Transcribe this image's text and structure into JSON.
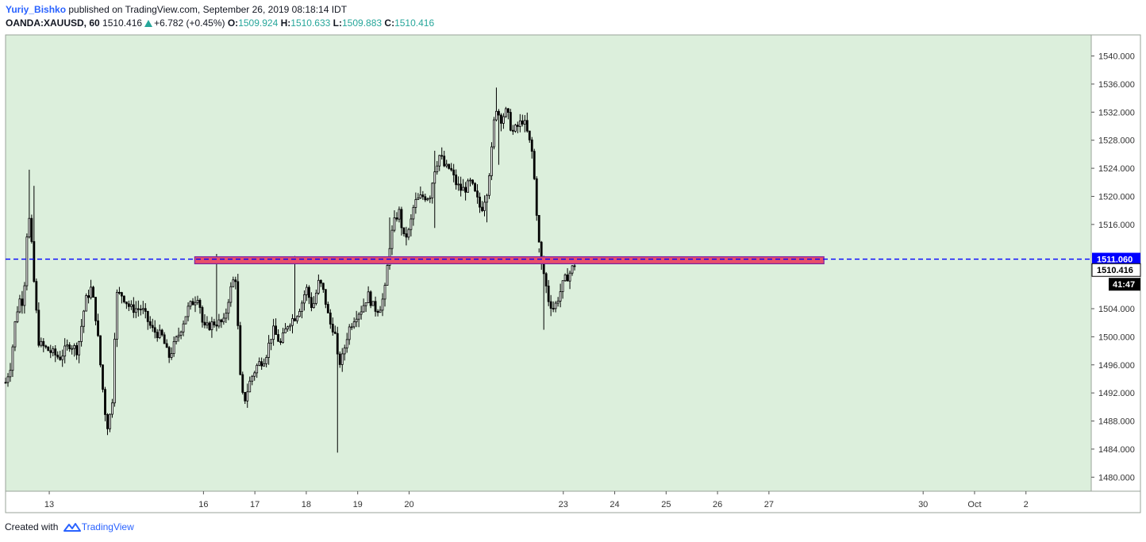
{
  "header": {
    "author": "Yuriy_Bishko",
    "published_text": "published on TradingView.com, September 26, 2019 08:18:14 IDT",
    "symbol": "OANDA:XAUUSD, 60",
    "last": "1510.416",
    "change": "+6.782 (+0.45%)",
    "o_label": "O:",
    "o_value": "1509.924",
    "h_label": "H:",
    "h_value": "1510.633",
    "l_label": "L:",
    "l_value": "1509.883",
    "c_label": "C:",
    "c_value": "1510.416"
  },
  "footer": {
    "created_text": "Created with",
    "brand": "TradingView"
  },
  "colors": {
    "background": "#dcefdc",
    "candle": "#000000",
    "dashed_line": "#0000ff",
    "zone_fill": "#e84f6a",
    "zone_border": "#7b1fa2",
    "header_up": "#26a69a"
  },
  "chart_data": {
    "type": "candlestick",
    "symbol": "OANDA:XAUUSD",
    "interval": "60",
    "ylim": [
      1478,
      1543
    ],
    "y_ticks": [
      "1540.000",
      "1536.000",
      "1532.000",
      "1528.000",
      "1524.000",
      "1520.000",
      "1516.000",
      "1504.000",
      "1500.000",
      "1496.000",
      "1492.000",
      "1488.000",
      "1484.000",
      "1480.000"
    ],
    "x_ticks": [
      {
        "label": "13",
        "t": 13
      },
      {
        "label": "16",
        "t": 16
      },
      {
        "label": "17",
        "t": 17
      },
      {
        "label": "18",
        "t": 18
      },
      {
        "label": "19",
        "t": 19
      },
      {
        "label": "20",
        "t": 20
      },
      {
        "label": "23",
        "t": 23
      },
      {
        "label": "24",
        "t": 24
      },
      {
        "label": "25",
        "t": 25
      },
      {
        "label": "26",
        "t": 26
      },
      {
        "label": "27",
        "t": 27
      },
      {
        "label": "30",
        "t": 30
      },
      {
        "label": "Oct",
        "t": 31
      },
      {
        "label": "2",
        "t": 32
      }
    ],
    "x_range": [
      12.15,
      33.27
    ],
    "horizontal_line": {
      "value": 1511.06,
      "label": "1511.060",
      "style": "dashed"
    },
    "zone": {
      "t_start": 15.83,
      "t_end": 28.07,
      "y_low": 1510.4,
      "y_high": 1511.4
    },
    "last_price": {
      "label": "1510.416",
      "value": 1510.416
    },
    "countdown": "41:47",
    "anchors": [
      [
        12.15,
        1493.5
      ],
      [
        12.25,
        1496
      ],
      [
        12.35,
        1503
      ],
      [
        12.45,
        1506
      ],
      [
        12.5,
        1504
      ],
      [
        12.55,
        1514
      ],
      [
        12.62,
        1517
      ],
      [
        12.72,
        1506
      ],
      [
        12.8,
        1499
      ],
      [
        13.0,
        1498
      ],
      [
        13.2,
        1497
      ],
      [
        13.4,
        1499
      ],
      [
        13.55,
        1498
      ],
      [
        13.7,
        1505
      ],
      [
        13.82,
        1507
      ],
      [
        13.92,
        1502
      ],
      [
        14.02,
        1494
      ],
      [
        14.12,
        1487
      ],
      [
        14.22,
        1490
      ],
      [
        14.3,
        1506
      ],
      [
        14.42,
        1506
      ],
      [
        14.58,
        1504
      ],
      [
        14.8,
        1504
      ],
      [
        15.0,
        1501
      ],
      [
        15.2,
        1500
      ],
      [
        15.32,
        1497
      ],
      [
        15.5,
        1500
      ],
      [
        15.7,
        1504
      ],
      [
        15.9,
        1506
      ],
      [
        16.0,
        1501
      ],
      [
        16.2,
        1502
      ],
      [
        16.4,
        1502
      ],
      [
        16.5,
        1506
      ],
      [
        16.62,
        1509
      ],
      [
        16.73,
        1492
      ],
      [
        16.8,
        1491
      ],
      [
        16.92,
        1494
      ],
      [
        17.05,
        1496
      ],
      [
        17.2,
        1497
      ],
      [
        17.35,
        1501
      ],
      [
        17.5,
        1499
      ],
      [
        17.65,
        1502
      ],
      [
        17.8,
        1503
      ],
      [
        17.92,
        1505
      ],
      [
        18.0,
        1507
      ],
      [
        18.12,
        1504
      ],
      [
        18.25,
        1508
      ],
      [
        18.35,
        1506
      ],
      [
        18.45,
        1502
      ],
      [
        18.55,
        1501
      ],
      [
        18.62,
        1496
      ],
      [
        18.7,
        1497
      ],
      [
        18.82,
        1501
      ],
      [
        18.95,
        1503
      ],
      [
        19.08,
        1504
      ],
      [
        19.2,
        1506
      ],
      [
        19.32,
        1504
      ],
      [
        19.42,
        1504
      ],
      [
        19.52,
        1506
      ],
      [
        19.62,
        1513
      ],
      [
        19.7,
        1516
      ],
      [
        19.8,
        1518
      ],
      [
        19.9,
        1514
      ],
      [
        20.0,
        1515
      ],
      [
        20.1,
        1519
      ],
      [
        20.25,
        1520
      ],
      [
        20.4,
        1520
      ],
      [
        20.5,
        1524
      ],
      [
        20.6,
        1526
      ],
      [
        20.7,
        1524
      ],
      [
        20.8,
        1524
      ],
      [
        20.9,
        1522
      ],
      [
        21.0,
        1521
      ],
      [
        21.08,
        1521
      ],
      [
        21.2,
        1522
      ],
      [
        21.3,
        1520
      ],
      [
        21.4,
        1518
      ],
      [
        21.52,
        1521
      ],
      [
        21.6,
        1526
      ],
      [
        21.68,
        1533
      ],
      [
        21.78,
        1531
      ],
      [
        21.88,
        1532
      ],
      [
        21.95,
        1531
      ],
      [
        22.0,
        1529
      ],
      [
        22.12,
        1530
      ],
      [
        22.22,
        1531
      ],
      [
        22.3,
        1529
      ],
      [
        22.4,
        1526
      ],
      [
        22.48,
        1518
      ],
      [
        22.55,
        1511
      ],
      [
        22.62,
        1509
      ],
      [
        22.72,
        1505
      ],
      [
        22.82,
        1504
      ],
      [
        22.92,
        1506
      ],
      [
        23.02,
        1508
      ],
      [
        23.12,
        1509
      ],
      [
        23.22,
        1510.4
      ]
    ],
    "spikes": [
      {
        "t": 12.62,
        "h": 1523.8
      },
      {
        "t": 12.72,
        "h": 1521.5
      },
      {
        "t": 16.25,
        "h": 1511.8
      },
      {
        "t": 17.78,
        "h": 1511.5
      },
      {
        "t": 18.62,
        "l": 1483.5
      },
      {
        "t": 14.15,
        "l": 1486
      },
      {
        "t": 19.62,
        "h": 1517
      },
      {
        "t": 20.52,
        "h": 1526.5
      },
      {
        "t": 21.7,
        "h": 1535.5
      },
      {
        "t": 21.75,
        "l": 1524.5
      },
      {
        "t": 20.5,
        "l": 1515.5
      },
      {
        "t": 22.62,
        "l": 1501
      },
      {
        "t": 22.55,
        "h": 1512
      },
      {
        "t": 21.52,
        "l": 1516.3
      }
    ]
  }
}
